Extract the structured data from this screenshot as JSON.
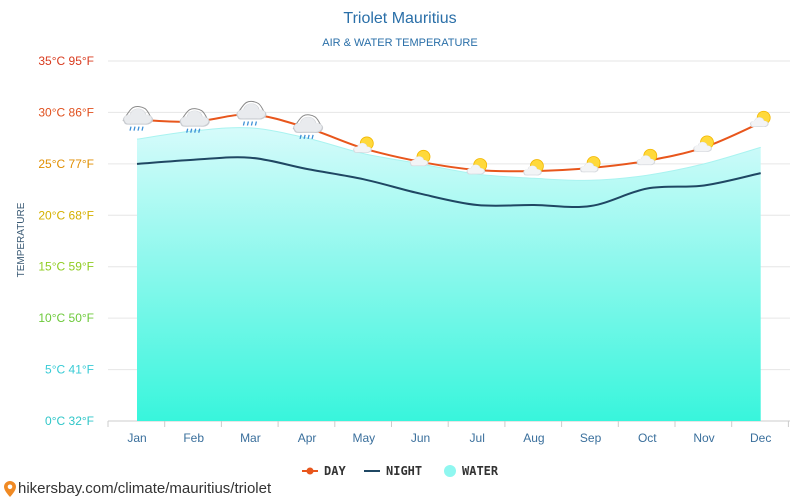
{
  "chart_data": {
    "type": "line",
    "title": "Triolet Mauritius",
    "subtitle": "AIR & WATER TEMPERATURE",
    "ylabel": "TEMPERATURE",
    "categories": [
      "Jan",
      "Feb",
      "Mar",
      "Apr",
      "May",
      "Jun",
      "Jul",
      "Aug",
      "Sep",
      "Oct",
      "Nov",
      "Dec"
    ],
    "ylim": [
      0,
      35
    ],
    "yticks": [
      {
        "value": 0,
        "label": "0°C 32°F",
        "color": "#2fc6c8"
      },
      {
        "value": 5,
        "label": "5°C 41°F",
        "color": "#38cbd5"
      },
      {
        "value": 10,
        "label": "10°C 50°F",
        "color": "#6cc93a"
      },
      {
        "value": 15,
        "label": "15°C 59°F",
        "color": "#8fcc22"
      },
      {
        "value": 20,
        "label": "20°C 68°F",
        "color": "#d4b000"
      },
      {
        "value": 25,
        "label": "25°C 77°F",
        "color": "#e08e00"
      },
      {
        "value": 30,
        "label": "30°C 86°F",
        "color": "#e0501e"
      },
      {
        "value": 35,
        "label": "35°C 95°F",
        "color": "#d83a1e"
      }
    ],
    "series": [
      {
        "name": "DAY",
        "color": "#e8561c",
        "values": [
          29.3,
          29.1,
          29.8,
          28.5,
          26.5,
          25.2,
          24.4,
          24.3,
          24.6,
          25.3,
          26.6,
          29.0
        ]
      },
      {
        "name": "NIGHT",
        "color": "#1f4763",
        "values": [
          25.0,
          25.4,
          25.6,
          24.5,
          23.5,
          22.1,
          21.0,
          21.0,
          20.9,
          22.6,
          22.9,
          24.1
        ]
      },
      {
        "name": "WATER",
        "color": "#8ff7f0",
        "values": [
          27.4,
          28.2,
          28.5,
          27.5,
          26.0,
          25.0,
          24.0,
          23.6,
          23.4,
          23.9,
          25.0,
          26.6
        ]
      }
    ],
    "weather_icons": [
      "rain-cloud-icon",
      "rain-cloud-icon",
      "rain-cloud-icon",
      "rain-cloud-icon",
      "sun-cloud-icon",
      "sun-cloud-icon",
      "sun-cloud-icon",
      "sun-cloud-icon",
      "sun-cloud-icon",
      "sun-cloud-icon",
      "sun-cloud-icon",
      "sun-cloud-icon"
    ],
    "grid": true,
    "legend_position": "bottom-center"
  },
  "footer": {
    "text": "hikersbay.com/climate/mauritius/triolet",
    "icon": "location-pin-icon",
    "icon_color": "#f08a24"
  }
}
